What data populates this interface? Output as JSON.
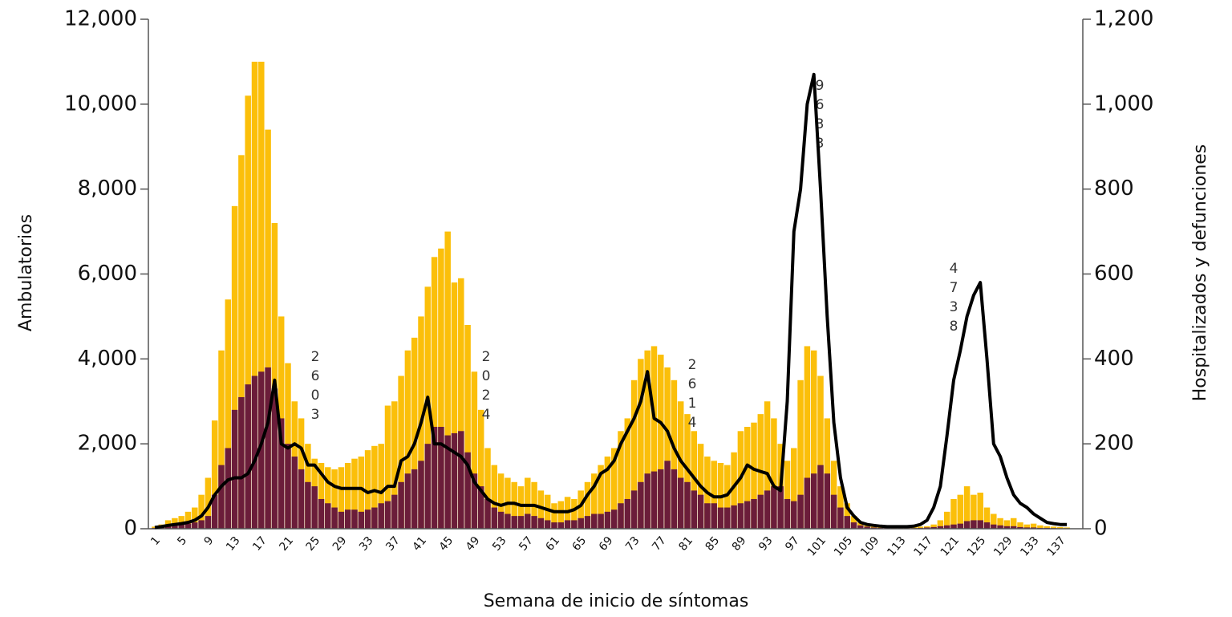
{
  "chart_data": {
    "type": "bar",
    "x_label": "Semana de inicio de síntomas",
    "y_label": "Ambulatorios",
    "y2_label": "Hospitalizados y defunciones",
    "categories": [
      "1",
      null,
      null,
      null,
      "5",
      null,
      null,
      null,
      "9",
      null,
      null,
      null,
      "13",
      null,
      null,
      null,
      "17",
      null,
      null,
      null,
      "21",
      null,
      null,
      null,
      "25",
      null,
      null,
      null,
      "29",
      null,
      null,
      null,
      "33",
      null,
      null,
      null,
      "37",
      null,
      null,
      null,
      "41",
      null,
      null,
      null,
      "45",
      null,
      null,
      null,
      "49",
      null,
      null,
      null,
      "53",
      null,
      null,
      null,
      "57",
      null,
      null,
      null,
      "61",
      null,
      null,
      null,
      "65",
      null,
      null,
      null,
      "69",
      null,
      null,
      null,
      "73",
      null,
      null,
      null,
      "77",
      null,
      null,
      null,
      "81",
      null,
      null,
      null,
      "85",
      null,
      null,
      null,
      "89",
      null,
      null,
      null,
      "93",
      null,
      null,
      null,
      "97",
      null,
      null,
      null,
      "101",
      null,
      null,
      null,
      "105",
      null,
      null,
      null,
      "109",
      null,
      null,
      null,
      "113",
      null,
      null,
      null,
      "117",
      null,
      null,
      null,
      "121",
      null,
      null,
      null,
      "125",
      null,
      null,
      null,
      "129",
      null,
      null,
      null,
      "133",
      null,
      null,
      null,
      "137",
      null
    ],
    "series": [
      {
        "color": "#fbbf0a",
        "values": [
          50,
          100,
          200,
          250,
          300,
          400,
          500,
          800,
          1200,
          2550,
          4200,
          5400,
          7600,
          8800,
          10200,
          11000,
          11000,
          9400,
          7200,
          5000,
          3900,
          3000,
          2600,
          2000,
          1650,
          1550,
          1450,
          1400,
          1450,
          1550,
          1650,
          1700,
          1850,
          1950,
          2000,
          2900,
          3000,
          3600,
          4200,
          4500,
          5000,
          5700,
          6400,
          6600,
          7000,
          5800,
          5900,
          4800,
          3700,
          2800,
          1900,
          1500,
          1300,
          1200,
          1100,
          1000,
          1200,
          1100,
          900,
          800,
          600,
          650,
          750,
          700,
          900,
          1100,
          1300,
          1500,
          1700,
          1900,
          2300,
          2600,
          3500,
          4000,
          4200,
          4300,
          4100,
          3800,
          3500,
          3000,
          2700,
          2300,
          2000,
          1700,
          1600,
          1550,
          1500,
          1800,
          2300,
          2400,
          2500,
          2700,
          3000,
          2600,
          2000,
          1600,
          1900,
          3500,
          4300,
          4200,
          3600,
          2600,
          1600,
          1000,
          600,
          300,
          150,
          80,
          60,
          50,
          40,
          30,
          30,
          30,
          40,
          50,
          60,
          100,
          200,
          400,
          700,
          800,
          1000,
          800,
          850,
          500,
          350,
          250,
          200,
          250,
          150,
          100,
          120,
          80,
          60,
          50,
          40,
          30
        ]
      },
      {
        "color": "#6b1d3a",
        "values": [
          20,
          40,
          60,
          80,
          100,
          120,
          150,
          200,
          300,
          800,
          1500,
          1900,
          2800,
          3100,
          3400,
          3600,
          3700,
          3800,
          3300,
          2600,
          2000,
          1700,
          1400,
          1100,
          1000,
          700,
          600,
          500,
          400,
          450,
          450,
          400,
          450,
          500,
          600,
          650,
          800,
          1100,
          1300,
          1400,
          1600,
          2000,
          2400,
          2400,
          2200,
          2250,
          2300,
          1800,
          1300,
          1000,
          700,
          500,
          400,
          350,
          300,
          300,
          350,
          300,
          250,
          200,
          150,
          150,
          200,
          200,
          250,
          300,
          350,
          350,
          400,
          450,
          600,
          700,
          900,
          1100,
          1300,
          1350,
          1400,
          1600,
          1400,
          1200,
          1100,
          900,
          800,
          600,
          600,
          500,
          500,
          550,
          600,
          650,
          700,
          800,
          900,
          1000,
          1000,
          700,
          650,
          800,
          1200,
          1300,
          1500,
          1300,
          800,
          500,
          300,
          150,
          80,
          50,
          30,
          20,
          20,
          15,
          15,
          15,
          15,
          20,
          30,
          40,
          60,
          80,
          100,
          120,
          180,
          200,
          200,
          150,
          100,
          80,
          60,
          60,
          40,
          30,
          30,
          20,
          20,
          15,
          10,
          10
        ]
      },
      {
        "type": "line",
        "axis": "y2",
        "color": "#000000",
        "values": [
          3,
          5,
          8,
          10,
          12,
          15,
          20,
          30,
          50,
          80,
          100,
          115,
          120,
          120,
          130,
          160,
          200,
          250,
          350,
          200,
          190,
          200,
          190,
          150,
          150,
          130,
          110,
          100,
          95,
          95,
          95,
          95,
          85,
          90,
          85,
          100,
          100,
          160,
          170,
          200,
          250,
          310,
          200,
          200,
          190,
          180,
          170,
          150,
          110,
          90,
          70,
          60,
          55,
          60,
          60,
          55,
          55,
          55,
          50,
          45,
          40,
          40,
          40,
          45,
          55,
          80,
          100,
          130,
          140,
          160,
          200,
          230,
          260,
          300,
          370,
          260,
          250,
          230,
          190,
          160,
          140,
          120,
          100,
          85,
          75,
          75,
          80,
          100,
          120,
          150,
          140,
          135,
          130,
          100,
          90,
          300,
          700,
          800,
          1000,
          1070,
          800,
          500,
          250,
          120,
          50,
          30,
          15,
          10,
          8,
          6,
          5,
          5,
          5,
          5,
          6,
          10,
          20,
          50,
          100,
          220,
          350,
          420,
          500,
          550,
          580,
          400,
          200,
          170,
          120,
          80,
          60,
          50,
          35,
          25,
          15,
          12,
          10,
          10
        ]
      }
    ],
    "annotations": [
      "2603",
      "2024",
      "2614",
      "9633",
      "4738"
    ],
    "ylim": [
      0,
      12000
    ],
    "yticks": [
      0,
      {
        "value": 2000,
        "label": "2,000"
      },
      {
        "value": 4000,
        "label": "4,000"
      },
      {
        "value": 6000,
        "label": "6,000"
      },
      {
        "value": 8000,
        "label": "8,000"
      },
      {
        "value": 10000,
        "label": "10,000"
      },
      {
        "value": 12000,
        "label": "12,000"
      }
    ],
    "y2lim": [
      0,
      1200
    ],
    "y2ticks": [
      0,
      200,
      400,
      600,
      800,
      {
        "value": 1000,
        "label": "1,000"
      },
      {
        "value": 1200,
        "label": "1,200"
      }
    ]
  }
}
